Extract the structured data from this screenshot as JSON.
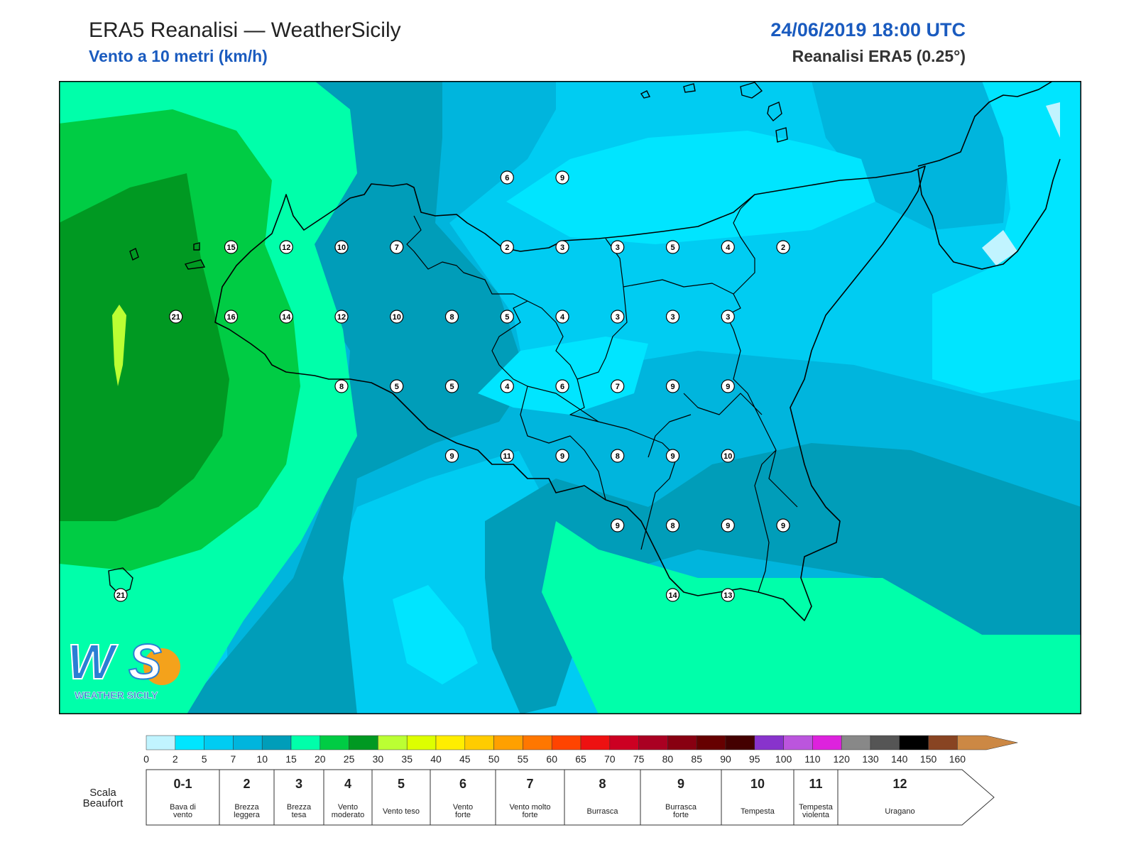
{
  "header": {
    "title": "ERA5 Reanalisi — WeatherSicily",
    "subtitle": "Vento a 10 metri (km/h)",
    "datetime": "24/06/2019 18:00 UTC",
    "source": "Reanalisi ERA5 (0.25°)"
  },
  "logo": {
    "text": "WEATHER SICILY",
    "colors": [
      "#2a7fd4",
      "#f4a21b"
    ]
  },
  "map": {
    "wind_values": [
      {
        "lat": 38.5,
        "lon": 14.5,
        "value": "6"
      },
      {
        "lat": 38.5,
        "lon": 15.0,
        "value": "9"
      },
      {
        "lat": 38.0,
        "lon": 12.0,
        "value": "15"
      },
      {
        "lat": 38.0,
        "lon": 12.5,
        "value": "12"
      },
      {
        "lat": 38.0,
        "lon": 13.0,
        "value": "10"
      },
      {
        "lat": 38.0,
        "lon": 13.5,
        "value": "7"
      },
      {
        "lat": 38.0,
        "lon": 14.5,
        "value": "2"
      },
      {
        "lat": 38.0,
        "lon": 15.0,
        "value": "3"
      },
      {
        "lat": 38.0,
        "lon": 15.5,
        "value": "3"
      },
      {
        "lat": 38.0,
        "lon": 16.0,
        "value": "5"
      },
      {
        "lat": 38.0,
        "lon": 16.5,
        "value": "4"
      },
      {
        "lat": 38.0,
        "lon": 17.0,
        "value": "2"
      },
      {
        "lat": 37.5,
        "lon": 11.5,
        "value": "21"
      },
      {
        "lat": 37.5,
        "lon": 12.0,
        "value": "16"
      },
      {
        "lat": 37.5,
        "lon": 12.5,
        "value": "14"
      },
      {
        "lat": 37.5,
        "lon": 13.0,
        "value": "12"
      },
      {
        "lat": 37.5,
        "lon": 13.5,
        "value": "10"
      },
      {
        "lat": 37.5,
        "lon": 14.0,
        "value": "8"
      },
      {
        "lat": 37.5,
        "lon": 14.5,
        "value": "5"
      },
      {
        "lat": 37.5,
        "lon": 15.0,
        "value": "4"
      },
      {
        "lat": 37.5,
        "lon": 15.5,
        "value": "3"
      },
      {
        "lat": 37.5,
        "lon": 16.0,
        "value": "3"
      },
      {
        "lat": 37.5,
        "lon": 16.5,
        "value": "3"
      },
      {
        "lat": 37.0,
        "lon": 13.0,
        "value": "8"
      },
      {
        "lat": 37.0,
        "lon": 13.5,
        "value": "5"
      },
      {
        "lat": 37.0,
        "lon": 14.0,
        "value": "5"
      },
      {
        "lat": 37.0,
        "lon": 14.5,
        "value": "4"
      },
      {
        "lat": 37.0,
        "lon": 15.0,
        "value": "6"
      },
      {
        "lat": 37.0,
        "lon": 15.5,
        "value": "7"
      },
      {
        "lat": 37.0,
        "lon": 16.0,
        "value": "9"
      },
      {
        "lat": 37.0,
        "lon": 16.5,
        "value": "9"
      },
      {
        "lat": 36.5,
        "lon": 14.0,
        "value": "9"
      },
      {
        "lat": 36.5,
        "lon": 14.5,
        "value": "11"
      },
      {
        "lat": 36.5,
        "lon": 15.0,
        "value": "9"
      },
      {
        "lat": 36.5,
        "lon": 15.5,
        "value": "8"
      },
      {
        "lat": 36.5,
        "lon": 16.0,
        "value": "9"
      },
      {
        "lat": 36.5,
        "lon": 16.5,
        "value": "10"
      },
      {
        "lat": 36.0,
        "lon": 15.5,
        "value": "9"
      },
      {
        "lat": 36.0,
        "lon": 16.0,
        "value": "8"
      },
      {
        "lat": 36.0,
        "lon": 16.5,
        "value": "9"
      },
      {
        "lat": 36.0,
        "lon": 17.0,
        "value": "9"
      },
      {
        "lat": 35.5,
        "lon": 11.0,
        "value": "21"
      },
      {
        "lat": 35.5,
        "lon": 16.0,
        "value": "14"
      },
      {
        "lat": 35.5,
        "lon": 16.5,
        "value": "13"
      }
    ]
  },
  "colorbar": {
    "ticks": [
      "0",
      "2",
      "5",
      "7",
      "10",
      "15",
      "20",
      "25",
      "30",
      "35",
      "40",
      "45",
      "50",
      "55",
      "60",
      "65",
      "70",
      "75",
      "80",
      "85",
      "90",
      "95",
      "100",
      "110",
      "120",
      "130",
      "140",
      "150",
      "160"
    ],
    "colors": [
      "#c1f4ff",
      "#00e5ff",
      "#00ccf2",
      "#00b5dd",
      "#009db9",
      "#00ffaa",
      "#00cc44",
      "#009922",
      "#bbff33",
      "#ddff00",
      "#ffee00",
      "#ffcc00",
      "#ffa000",
      "#ff7700",
      "#ff4400",
      "#ee1111",
      "#cc0022",
      "#aa0022",
      "#880011",
      "#660000",
      "#440000",
      "#8833cc",
      "#bb55dd",
      "#dd22dd",
      "#888888",
      "#555555",
      "#000000",
      "#884422",
      "#cc8844"
    ]
  },
  "beaufort": {
    "label": "Scala Beaufort",
    "levels": [
      {
        "num": "0-1",
        "name": "Bava di vento"
      },
      {
        "num": "2",
        "name": "Brezza leggera"
      },
      {
        "num": "3",
        "name": "Brezza tesa"
      },
      {
        "num": "4",
        "name": "Vento moderato"
      },
      {
        "num": "5",
        "name": "Vento teso"
      },
      {
        "num": "6",
        "name": "Vento forte"
      },
      {
        "num": "7",
        "name": "Vento molto forte"
      },
      {
        "num": "8",
        "name": "Burrasca"
      },
      {
        "num": "9",
        "name": "Burrasca forte"
      },
      {
        "num": "10",
        "name": "Tempesta"
      },
      {
        "num": "11",
        "name": "Tempesta violenta"
      },
      {
        "num": "12",
        "name": "Uragano"
      }
    ]
  }
}
